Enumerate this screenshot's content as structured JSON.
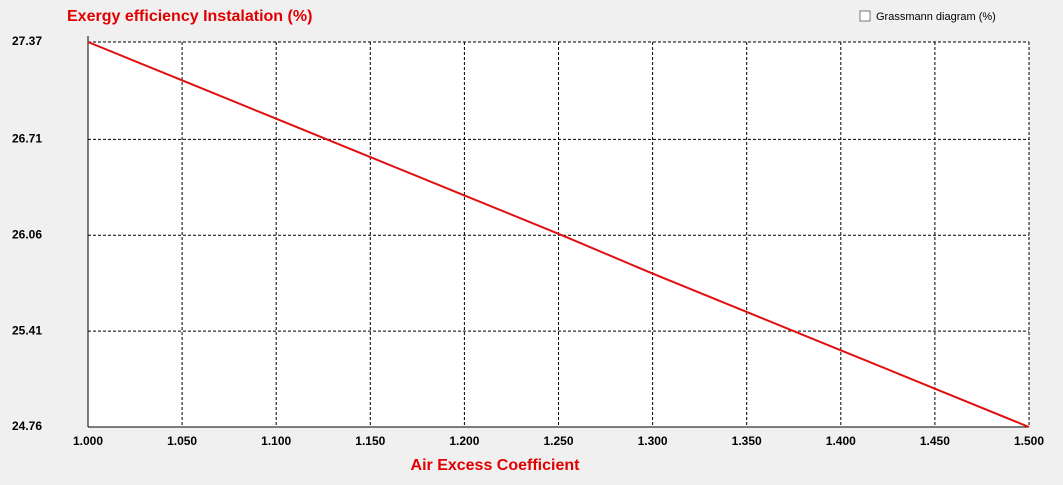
{
  "chart_data": {
    "type": "line",
    "title": "Exergy efficiency Instalation (%)",
    "x_label": "Air Excess Coefficient",
    "x": [
      1.0,
      1.05,
      1.1,
      1.15,
      1.2,
      1.25,
      1.3,
      1.35,
      1.4,
      1.45,
      1.5
    ],
    "series": [
      {
        "name": "Exergy efficiency Instalation",
        "color": "#e01010",
        "values": [
          27.37,
          27.11,
          26.85,
          26.59,
          26.33,
          26.07,
          25.8,
          25.54,
          25.28,
          25.02,
          24.76
        ]
      }
    ],
    "xlim": [
      1.0,
      1.5
    ],
    "xticks": [
      {
        "value": 1.0,
        "label": "1.000"
      },
      {
        "value": 1.05,
        "label": "1.050"
      },
      {
        "value": 1.1,
        "label": "1.100"
      },
      {
        "value": 1.15,
        "label": "1.150"
      },
      {
        "value": 1.2,
        "label": "1.200"
      },
      {
        "value": 1.25,
        "label": "1.250"
      },
      {
        "value": 1.3,
        "label": "1.300"
      },
      {
        "value": 1.35,
        "label": "1.350"
      },
      {
        "value": 1.4,
        "label": "1.400"
      },
      {
        "value": 1.45,
        "label": "1.450"
      },
      {
        "value": 1.5,
        "label": "1.500"
      }
    ],
    "ylim": [
      24.76,
      27.37
    ],
    "yticks": [
      24.76,
      25.41,
      26.06,
      26.71,
      27.37
    ],
    "grid": true
  },
  "controls": {
    "grassmann_checkbox": {
      "label": "Grassmann diagram (%)",
      "checked": false
    }
  }
}
